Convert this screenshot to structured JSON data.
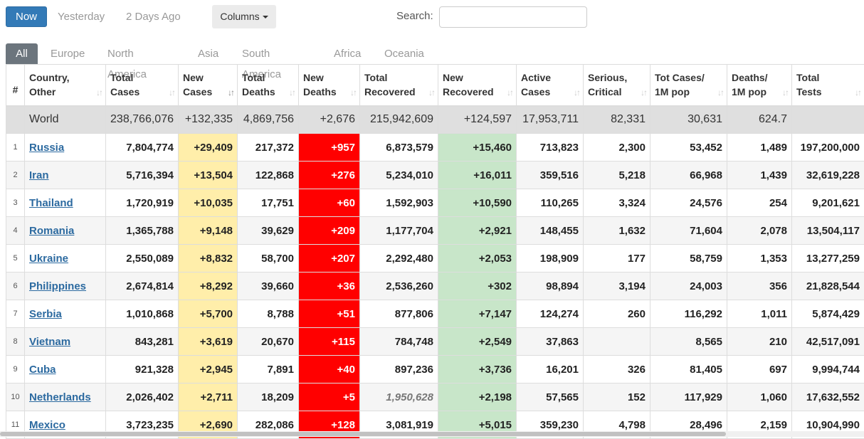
{
  "toolbar": {
    "now_label": "Now",
    "yesterday_label": "Yesterday",
    "two_days_label": "2 Days Ago",
    "columns_label": "Columns",
    "search_label": "Search:",
    "search_value": ""
  },
  "tabs": [
    "All",
    "Europe",
    "North America",
    "Asia",
    "South America",
    "Africa",
    "Oceania"
  ],
  "headers": [
    "#",
    "Country,\nOther",
    "Total\nCases",
    "New\nCases",
    "Total\nDeaths",
    "New\nDeaths",
    "Total\nRecovered",
    "New\nRecovered",
    "Active\nCases",
    "Serious,\nCritical",
    "Tot Cases/\n1M pop",
    "Deaths/\n1M pop",
    "Total\nTests"
  ],
  "world": [
    "",
    "World",
    "238,766,076",
    "+132,335",
    "4,869,756",
    "+2,676",
    "215,942,609",
    "+124,597",
    "17,953,711",
    "82,331",
    "30,631",
    "624.7",
    ""
  ],
  "rows": [
    [
      "1",
      "Russia",
      "7,804,774",
      "+29,409",
      "217,372",
      "+957",
      "6,873,579",
      "+15,460",
      "713,823",
      "2,300",
      "53,452",
      "1,489",
      "197,200,000"
    ],
    [
      "2",
      "Iran",
      "5,716,394",
      "+13,504",
      "122,868",
      "+276",
      "5,234,010",
      "+16,011",
      "359,516",
      "5,218",
      "66,968",
      "1,439",
      "32,619,228"
    ],
    [
      "3",
      "Thailand",
      "1,720,919",
      "+10,035",
      "17,751",
      "+60",
      "1,592,903",
      "+10,590",
      "110,265",
      "3,324",
      "24,576",
      "254",
      "9,201,621"
    ],
    [
      "4",
      "Romania",
      "1,365,788",
      "+9,148",
      "39,629",
      "+209",
      "1,177,704",
      "+2,921",
      "148,455",
      "1,632",
      "71,604",
      "2,078",
      "13,504,117"
    ],
    [
      "5",
      "Ukraine",
      "2,550,089",
      "+8,832",
      "58,700",
      "+207",
      "2,292,480",
      "+2,053",
      "198,909",
      "177",
      "58,759",
      "1,353",
      "13,277,259"
    ],
    [
      "6",
      "Philippines",
      "2,674,814",
      "+8,292",
      "39,660",
      "+36",
      "2,536,260",
      "+302",
      "98,894",
      "3,194",
      "24,003",
      "356",
      "21,828,544"
    ],
    [
      "7",
      "Serbia",
      "1,010,868",
      "+5,700",
      "8,788",
      "+51",
      "877,806",
      "+7,147",
      "124,274",
      "260",
      "116,292",
      "1,011",
      "5,874,429"
    ],
    [
      "8",
      "Vietnam",
      "843,281",
      "+3,619",
      "20,670",
      "+115",
      "784,748",
      "+2,549",
      "37,863",
      "",
      "8,565",
      "210",
      "42,517,091"
    ],
    [
      "9",
      "Cuba",
      "921,328",
      "+2,945",
      "7,891",
      "+40",
      "897,236",
      "+3,736",
      "16,201",
      "326",
      "81,405",
      "697",
      "9,994,744"
    ],
    [
      "10",
      "Netherlands",
      "2,026,402",
      "+2,711",
      "18,209",
      "+5",
      "1,950,628",
      "+2,198",
      "57,565",
      "152",
      "117,929",
      "1,060",
      "17,632,552"
    ],
    [
      "11",
      "Mexico",
      "3,723,235",
      "+2,690",
      "282,086",
      "+128",
      "3,081,919",
      "+5,015",
      "359,230",
      "4,798",
      "28,496",
      "2,159",
      "10,904,990"
    ]
  ],
  "italic_cells": [
    {
      "row": 9,
      "col": 6
    }
  ],
  "colors": {
    "accent": "#337ab7",
    "new_cases": "#ffeeaa",
    "new_deaths": "#ff0000",
    "new_recovered": "#c8e6c9",
    "world_row": "#dfdfdf",
    "link": "#2c6aa0"
  }
}
